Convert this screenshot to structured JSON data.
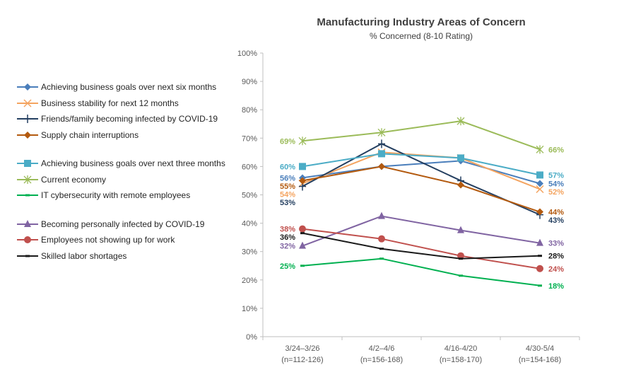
{
  "chart_data": {
    "type": "line",
    "title": "Manufacturing  Industry Areas of Concern",
    "subtitle": "% Concerned  (8-10 Rating)",
    "categories": [
      [
        "3/24–3/26",
        "(n=112-126)"
      ],
      [
        "4/2–4/6",
        "(n=156-168)"
      ],
      [
        "4/16-4/20",
        "(n=158-170)"
      ],
      [
        "4/30-5/4",
        "(n=154-168)"
      ]
    ],
    "ylim": [
      0,
      100
    ],
    "yticks": [
      "0%",
      "10%",
      "20%",
      "30%",
      "40%",
      "50%",
      "60%",
      "70%",
      "80%",
      "90%",
      "100%"
    ],
    "grid": false,
    "legend_position": "left",
    "series": [
      {
        "name": "Achieving business goals over next six months",
        "color": "#4a7ebb",
        "marker": "diamond",
        "values": [
          56,
          60,
          62,
          54
        ],
        "labels": [
          "56%",
          null,
          null,
          "54%"
        ]
      },
      {
        "name": "Business stability for next 12 months",
        "color": "#f4a460",
        "marker": "x",
        "values": [
          54,
          65,
          63,
          52
        ],
        "labels": [
          "54%",
          null,
          null,
          "52%"
        ]
      },
      {
        "name": "Friends/family becoming infected by COVID-19",
        "color": "#243f60",
        "marker": "plus",
        "values": [
          53,
          68,
          55,
          43
        ],
        "labels": [
          "53%",
          null,
          null,
          "43%"
        ]
      },
      {
        "name": "Supply chain interruptions",
        "color": "#b35a0f",
        "marker": "diamond",
        "values": [
          55,
          60,
          53.5,
          44
        ],
        "labels": [
          "55%",
          null,
          null,
          "44%"
        ]
      },
      {
        "name": "Achieving business goals over next three months",
        "color": "#4bacc6",
        "marker": "square",
        "values": [
          60,
          64.5,
          63,
          57
        ],
        "labels": [
          "60%",
          null,
          null,
          "57%"
        ]
      },
      {
        "name": "Current economy",
        "color": "#9bbb59",
        "marker": "asterisk",
        "values": [
          69,
          72,
          76,
          66
        ],
        "labels": [
          "69%",
          null,
          null,
          "66%"
        ]
      },
      {
        "name": "IT cybersecurity with remote employees",
        "color": "#00b050",
        "marker": "dash",
        "values": [
          25,
          27.5,
          21.5,
          18
        ],
        "labels": [
          "25%",
          null,
          null,
          "18%"
        ]
      },
      {
        "name": "Becoming personally infected by COVID-19",
        "color": "#8064a2",
        "marker": "triangle",
        "values": [
          32,
          42.5,
          37.5,
          33
        ],
        "labels": [
          "32%",
          null,
          null,
          "33%"
        ]
      },
      {
        "name": "Employees not showing up for work",
        "color": "#c0504d",
        "marker": "circle",
        "values": [
          38,
          34.5,
          28.5,
          24
        ],
        "labels": [
          "38%",
          null,
          null,
          "24%"
        ]
      },
      {
        "name": "Skilled labor shortages",
        "color": "#1a1a1a",
        "marker": "dash",
        "values": [
          36.5,
          31,
          27.5,
          28.5
        ],
        "labels": [
          "36%",
          null,
          null,
          "28%"
        ]
      }
    ]
  }
}
